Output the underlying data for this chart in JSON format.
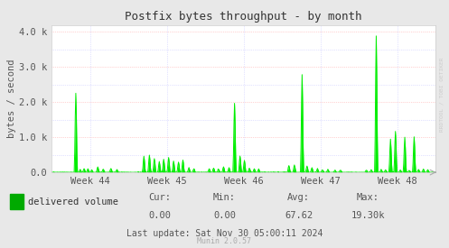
{
  "title": "Postfix bytes throughput - by month",
  "ylabel": "bytes / second",
  "background_color": "#e8e8e8",
  "plot_bg_color": "#ffffff",
  "grid_color_major": "#ffaaaa",
  "grid_color_minor": "#c8c8ff",
  "line_color": "#00ee00",
  "yticks_labels": [
    "0.0",
    "1.0 k",
    "2.0 k",
    "3.0 k",
    "4.0 k"
  ],
  "yticks_values": [
    0,
    1000,
    2000,
    3000,
    4000
  ],
  "ymax": 4200,
  "xtick_labels": [
    "Week 44",
    "Week 45",
    "Week 46",
    "Week 47",
    "Week 48"
  ],
  "legend_label": "delivered volume",
  "legend_color": "#00aa00",
  "cur_val": "0.00",
  "min_val": "0.00",
  "avg_val": "67.62",
  "max_val": "19.30k",
  "last_update": "Last update: Sat Nov 30 05:00:11 2024",
  "munin_version": "Munin 2.0.57",
  "watermark": "RRDTOOL / TOBI OETIKER",
  "figwidth": 4.97,
  "figheight": 2.75,
  "dpi": 100
}
